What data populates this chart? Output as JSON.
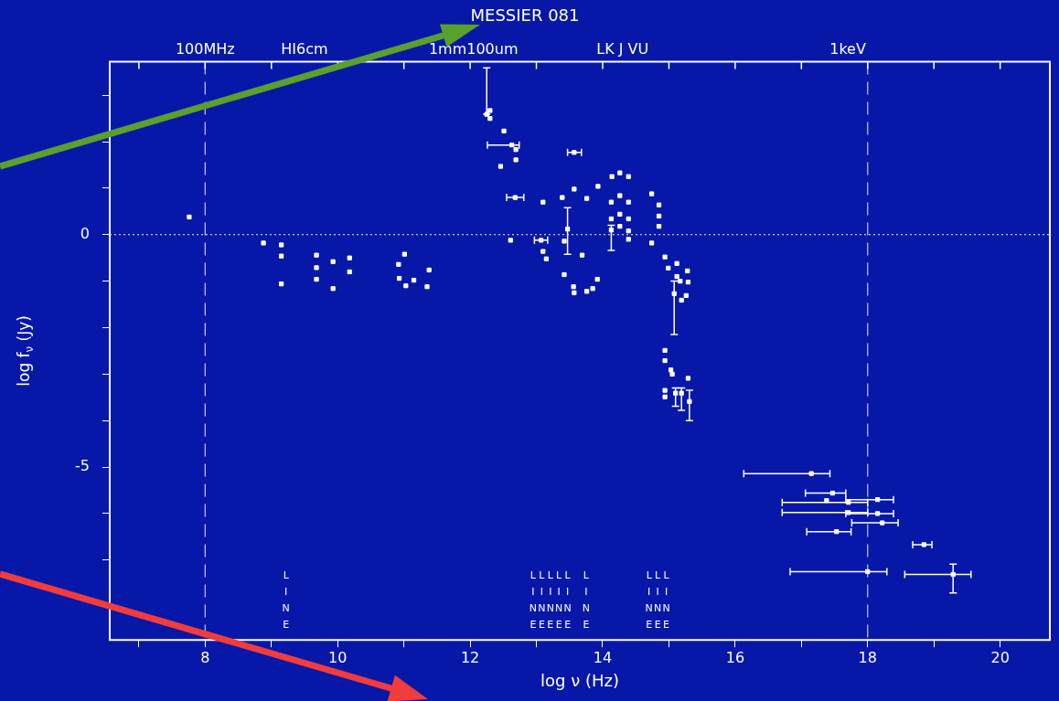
{
  "chart_data": {
    "type": "scatter",
    "title": "MESSIER 081",
    "xlabel": "log ν (Hz)",
    "ylabel": "log f$_{ν}$ (Jy)",
    "xlim": [
      6.56,
      20.75
    ],
    "ylim": [
      -8.72,
      3.72
    ],
    "xticks": [
      {
        "value": 7,
        "label": null
      },
      8,
      {
        "value": 9,
        "label": null
      },
      10,
      {
        "value": 11,
        "label": null
      },
      12,
      {
        "value": 13,
        "label": null
      },
      14,
      {
        "value": 15,
        "label": null
      },
      16,
      {
        "value": 17,
        "label": null
      },
      18,
      {
        "value": 19,
        "label": null
      },
      20
    ],
    "yticks": [
      {
        "value": -8,
        "label": null
      },
      {
        "value": -7,
        "label": null
      },
      {
        "value": -6,
        "label": null
      },
      -5,
      {
        "value": -4,
        "label": null
      },
      {
        "value": -3,
        "label": null
      },
      {
        "value": -2,
        "label": null
      },
      {
        "value": -1,
        "label": null
      },
      0,
      {
        "value": 1,
        "label": null
      },
      {
        "value": 2,
        "label": null
      },
      {
        "value": 3,
        "label": null
      }
    ],
    "legend": false,
    "marker": "square",
    "ref_lines": [
      {
        "axis": "x",
        "value": 8,
        "color": "#c8c8e0",
        "line_style": "dashed"
      },
      {
        "axis": "x",
        "value": 18,
        "color": "#c8c8e0",
        "line_style": "dashed"
      },
      {
        "axis": "y",
        "value": 0,
        "color": "#ffff80",
        "line_style": "dotted"
      }
    ],
    "annotations": [
      "100MHz",
      "HI6cm",
      "1mm100um",
      "LK J VU",
      "1keV",
      "LINE",
      "LINE",
      "LINE",
      "LINE",
      "LINE",
      "LINE",
      "LINE",
      "LINE",
      "LINE",
      "LINE"
    ],
    "series": [
      {
        "color": "#ffffff",
        "x": [
          7.76,
          8.88,
          9.15,
          9.15,
          9.15,
          9.68,
          9.68,
          9.68,
          9.93,
          9.93,
          10.18,
          10.18,
          10.92,
          10.93,
          11.01,
          11.03,
          11.15,
          11.35,
          11.38,
          12.25,
          12.3,
          12.3,
          12.46,
          12.51,
          12.61,
          12.63,
          12.68,
          12.69,
          12.69,
          13.07,
          13.1,
          13.1,
          13.15,
          13.39,
          13.42,
          13.42,
          13.47,
          13.56,
          13.57,
          13.57,
          13.57,
          13.69,
          13.76,
          13.76,
          13.85,
          13.92,
          13.93,
          14.13,
          14.13,
          14.13,
          14.14,
          14.26,
          14.26,
          14.26,
          14.26,
          14.39,
          14.39,
          14.39,
          14.39,
          14.39,
          14.74,
          14.74,
          14.85,
          14.85,
          14.85,
          14.94,
          14.99,
          15.12,
          15.12,
          15.17,
          15.28,
          15.29,
          15.08,
          15.26,
          15.19,
          14.94,
          14.94,
          15.03,
          15.05,
          15.29,
          14.94,
          14.94,
          15.1,
          15.19,
          15.31,
          17.15,
          17.47,
          17.38,
          17.71,
          18.15,
          17.71,
          18.15,
          18.22,
          17.53,
          18.85,
          18.0,
          19.29
        ],
        "values": [
          0.38,
          -0.18,
          -0.22,
          -0.46,
          -1.06,
          -0.44,
          -0.71,
          -0.96,
          -0.58,
          -1.16,
          -0.5,
          -0.8,
          -0.64,
          -0.94,
          -0.42,
          -1.1,
          -0.98,
          -1.12,
          -0.76,
          2.59,
          2.5,
          2.67,
          1.47,
          2.23,
          -0.12,
          1.93,
          0.8,
          1.83,
          1.61,
          -0.12,
          0.7,
          -0.36,
          -0.52,
          0.8,
          -0.14,
          -0.86,
          0.12,
          -1.12,
          1.77,
          0.98,
          -1.25,
          -0.44,
          0.78,
          -1.22,
          -1.16,
          -0.96,
          1.04,
          0.7,
          0.34,
          0.1,
          1.25,
          1.33,
          0.84,
          0.44,
          0.18,
          1.25,
          0.7,
          0.34,
          0.08,
          -0.1,
          0.88,
          -0.18,
          0.64,
          0.4,
          0.18,
          -0.48,
          -0.72,
          -0.62,
          -0.9,
          -1.0,
          -0.78,
          -1.02,
          -1.27,
          -1.31,
          -1.41,
          -2.49,
          -2.71,
          -2.91,
          -3.0,
          -3.09,
          -3.35,
          -3.49,
          -3.41,
          -3.41,
          -3.59,
          -5.14,
          -5.56,
          -5.72,
          -5.76,
          -5.7,
          -5.98,
          -6.0,
          -6.2,
          -6.39,
          -6.67,
          -7.25,
          -7.31
        ],
        "errors": [
          null,
          null,
          null,
          null,
          null,
          null,
          null,
          null,
          null,
          null,
          null,
          null,
          null,
          null,
          null,
          null,
          null,
          null,
          null,
          [
            2.59,
            3.59
          ],
          null,
          null,
          null,
          null,
          null,
          null,
          null,
          null,
          null,
          null,
          null,
          null,
          null,
          null,
          null,
          null,
          [
            -0.42,
            0.58
          ],
          null,
          null,
          null,
          null,
          null,
          null,
          null,
          null,
          null,
          null,
          null,
          null,
          [
            -0.34,
            0.2
          ],
          null,
          null,
          null,
          null,
          null,
          null,
          null,
          null,
          null,
          null,
          null,
          null,
          null,
          null,
          null,
          null,
          null,
          null,
          null,
          null,
          null,
          null,
          [
            -2.15,
            -1.0
          ],
          null,
          null,
          null,
          null,
          null,
          null,
          null,
          null,
          null,
          [
            -3.69,
            -3.3
          ],
          [
            -3.78,
            -3.3
          ],
          [
            -4.0,
            -3.35
          ],
          null,
          null,
          null,
          null,
          null,
          null,
          null,
          null,
          null,
          null,
          null,
          [
            -7.71,
            -7.09
          ]
        ],
        "xerrors": [
          null,
          null,
          null,
          null,
          null,
          null,
          null,
          null,
          null,
          null,
          null,
          null,
          null,
          null,
          null,
          null,
          null,
          null,
          null,
          null,
          null,
          null,
          null,
          null,
          null,
          [
            12.26,
            12.74
          ],
          [
            12.55,
            12.81
          ],
          null,
          null,
          [
            12.97,
            13.17
          ],
          null,
          null,
          null,
          null,
          null,
          null,
          null,
          null,
          [
            13.47,
            13.68
          ],
          null,
          null,
          null,
          null,
          null,
          null,
          null,
          null,
          null,
          null,
          null,
          null,
          null,
          null,
          null,
          null,
          null,
          null,
          null,
          null,
          null,
          null,
          null,
          null,
          null,
          null,
          null,
          null,
          null,
          null,
          null,
          null,
          null,
          null,
          null,
          null,
          null,
          null,
          null,
          null,
          null,
          null,
          null,
          null,
          null,
          null,
          [
            16.13,
            17.43
          ],
          [
            17.06,
            17.67
          ],
          null,
          [
            16.71,
            18.0
          ],
          [
            17.67,
            18.39
          ],
          [
            16.71,
            18.0
          ],
          [
            17.67,
            18.39
          ],
          [
            17.76,
            18.46
          ],
          [
            17.08,
            17.75
          ],
          [
            18.68,
            18.97
          ],
          [
            16.83,
            18.29
          ],
          [
            18.56,
            19.56
          ]
        ]
      }
    ]
  }
}
